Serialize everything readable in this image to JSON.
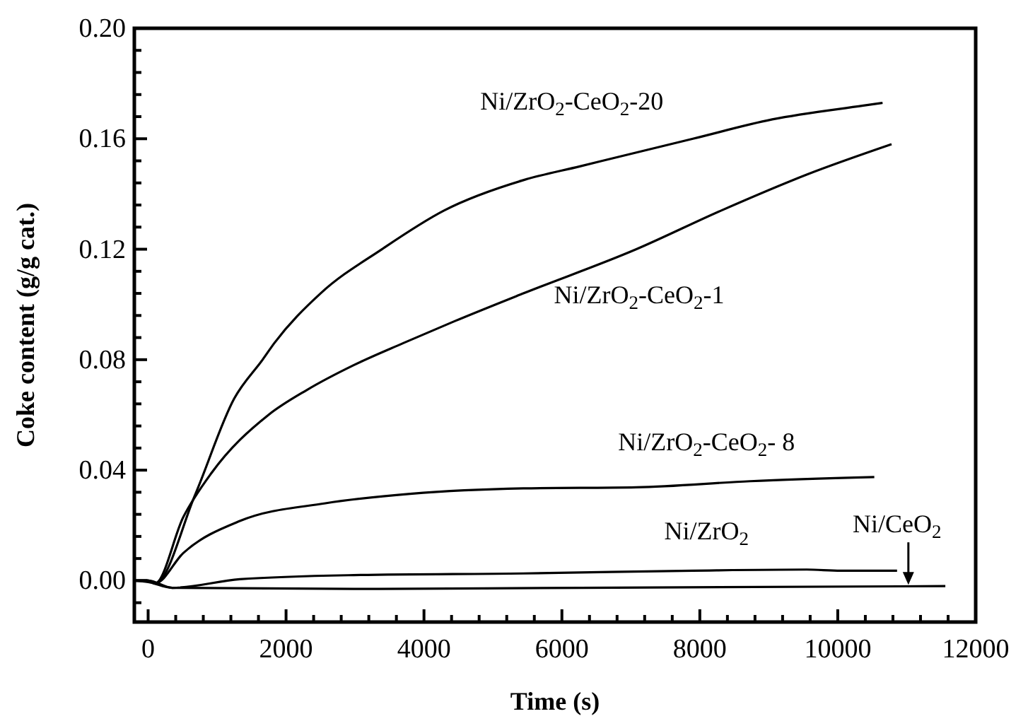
{
  "chart_data": {
    "type": "line",
    "xlabel": "Time (s)",
    "ylabel": "Coke content (g/g cat.)",
    "xlim": [
      -200,
      12000
    ],
    "ylim": [
      -0.015,
      0.2
    ],
    "xticks": [
      0,
      {
        "value": 400,
        "label": null
      },
      {
        "value": 800,
        "label": null
      },
      {
        "value": 1200,
        "label": null
      },
      {
        "value": 1600,
        "label": null
      },
      2000,
      {
        "value": 2400,
        "label": null
      },
      {
        "value": 2800,
        "label": null
      },
      {
        "value": 3200,
        "label": null
      },
      {
        "value": 3600,
        "label": null
      },
      4000,
      {
        "value": 4400,
        "label": null
      },
      {
        "value": 4800,
        "label": null
      },
      {
        "value": 5200,
        "label": null
      },
      {
        "value": 5600,
        "label": null
      },
      6000,
      {
        "value": 6400,
        "label": null
      },
      {
        "value": 6800,
        "label": null
      },
      {
        "value": 7200,
        "label": null
      },
      {
        "value": 7600,
        "label": null
      },
      8000,
      {
        "value": 8400,
        "label": null
      },
      {
        "value": 8800,
        "label": null
      },
      {
        "value": 9200,
        "label": null
      },
      {
        "value": 9600,
        "label": null
      },
      10000,
      {
        "value": 10400,
        "label": null
      },
      {
        "value": 10800,
        "label": null
      },
      {
        "value": 11200,
        "label": null
      },
      {
        "value": 11600,
        "label": null
      },
      12000
    ],
    "yticks": [
      {
        "value": -0.008,
        "label": null
      },
      {
        "value": 0,
        "label": "0.00"
      },
      {
        "value": 0.008,
        "label": null
      },
      {
        "value": 0.016,
        "label": null
      },
      {
        "value": 0.024,
        "label": null
      },
      {
        "value": 0.032,
        "label": null
      },
      {
        "value": 0.04,
        "label": "0.04"
      },
      {
        "value": 0.048,
        "label": null
      },
      {
        "value": 0.056,
        "label": null
      },
      {
        "value": 0.064,
        "label": null
      },
      {
        "value": 0.072,
        "label": null
      },
      {
        "value": 0.08,
        "label": "0.08"
      },
      {
        "value": 0.088,
        "label": null
      },
      {
        "value": 0.096,
        "label": null
      },
      {
        "value": 0.104,
        "label": null
      },
      {
        "value": 0.112,
        "label": null
      },
      {
        "value": 0.12,
        "label": "0.12"
      },
      {
        "value": 0.128,
        "label": null
      },
      {
        "value": 0.136,
        "label": null
      },
      {
        "value": 0.144,
        "label": null
      },
      {
        "value": 0.152,
        "label": null
      },
      {
        "value": 0.16,
        "label": "0.16"
      },
      {
        "value": 0.168,
        "label": null
      },
      {
        "value": 0.176,
        "label": null
      },
      {
        "value": 0.184,
        "label": null
      },
      {
        "value": 0.192,
        "label": null
      },
      {
        "value": 0.2,
        "label": "0.20"
      }
    ],
    "grid": false,
    "marker": "none",
    "line_style": "solid",
    "series": [
      {
        "name": "Ni/ZrO$_{2}$-CeO$_{2}$-20",
        "color": "#000000",
        "x": [
          -200,
          0,
          100,
          680,
          1250,
          1660,
          1830,
          2500,
          3390,
          4290,
          5440,
          6260,
          7900,
          9050,
          10370,
          10650
        ],
        "values": [
          0,
          0,
          -0.001,
          0.031,
          0.066,
          0.08,
          0.086,
          0.104,
          0.12,
          0.134,
          0.145,
          0.15,
          0.16,
          0.167,
          0.172,
          0.173
        ]
      },
      {
        "name": "Ni/ZrO$_{2}$-CeO$_{2}$-1",
        "color": "#000000",
        "x": [
          -200,
          0,
          100,
          510,
          920,
          1745,
          2300,
          2980,
          3700,
          4450,
          5440,
          7080,
          8310,
          9550,
          10780
        ],
        "values": [
          0,
          0,
          -0.001,
          0.023,
          0.039,
          0.06,
          0.069,
          0.078,
          0.086,
          0.094,
          0.104,
          0.12,
          0.134,
          0.147,
          0.158
        ]
      },
      {
        "name": "Ni/ZrO$_{2}$-CeO$_{2}$- 8",
        "color": "#000000",
        "x": [
          -200,
          0,
          100,
          510,
          1330,
          2570,
          3800,
          5440,
          7080,
          8730,
          10530
        ],
        "values": [
          0,
          0,
          -0.001,
          0.01,
          0.0216,
          0.028,
          0.0314,
          0.0334,
          0.0338,
          0.036,
          0.0375
        ]
      },
      {
        "name": "Ni/ZrO$_{2}$",
        "color": "#000000",
        "x": [
          -200,
          0,
          350,
          1330,
          2980,
          5440,
          7900,
          9550,
          10040,
          10860
        ],
        "values": [
          0,
          -0.0005,
          -0.0026,
          0.0005,
          0.002,
          0.0026,
          0.0036,
          0.004,
          0.0036,
          0.0036
        ]
      },
      {
        "name": "Ni/CeO$_{2}$",
        "color": "#000000",
        "x": [
          -200,
          0,
          350,
          2980,
          6260,
          11560
        ],
        "values": [
          0,
          0,
          -0.0026,
          -0.003,
          -0.0026,
          -0.002
        ]
      }
    ]
  }
}
